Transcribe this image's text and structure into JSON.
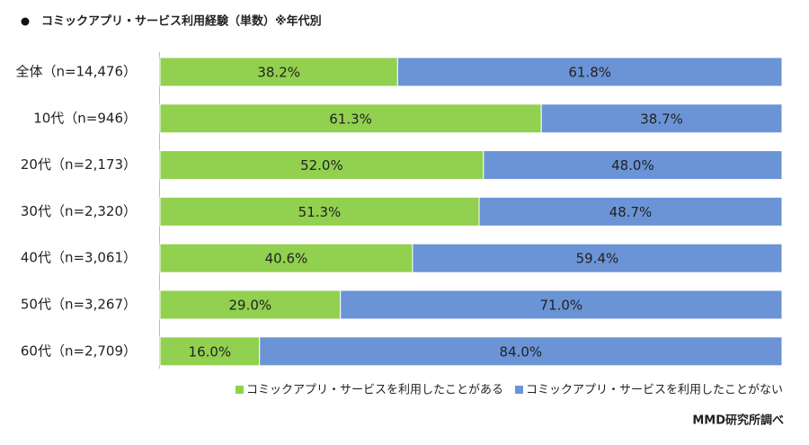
{
  "chart_data": {
    "type": "stacked-bar-horizontal",
    "title": "コミックアプリ・サービス利用経験（単数）※年代別",
    "source": "MMD研究所調べ",
    "categories": [
      "全体（n=14,476）",
      "10代（n=946）",
      "20代（n=2,173）",
      "30代（n=2,320）",
      "40代（n=3,061）",
      "50代（n=3,267）",
      "60代（n=2,709）"
    ],
    "xlim": [
      0,
      100
    ],
    "series": [
      {
        "name": "コミックアプリ・サービスを利用したことがある",
        "color": "#92d050",
        "values": [
          38.2,
          61.3,
          52.0,
          51.3,
          40.6,
          29.0,
          16.0
        ],
        "value_labels": [
          "38.2%",
          "61.3%",
          "52.0%",
          "51.3%",
          "40.6%",
          "29.0%",
          "16.0%"
        ]
      },
      {
        "name": "コミックアプリ・サービスを利用したことがない",
        "color": "#6b94d6",
        "values": [
          61.8,
          38.7,
          48.0,
          48.7,
          59.4,
          71.0,
          84.0
        ],
        "value_labels": [
          "61.8%",
          "38.7%",
          "48.0%",
          "48.7%",
          "59.4%",
          "71.0%",
          "84.0%"
        ]
      }
    ]
  }
}
